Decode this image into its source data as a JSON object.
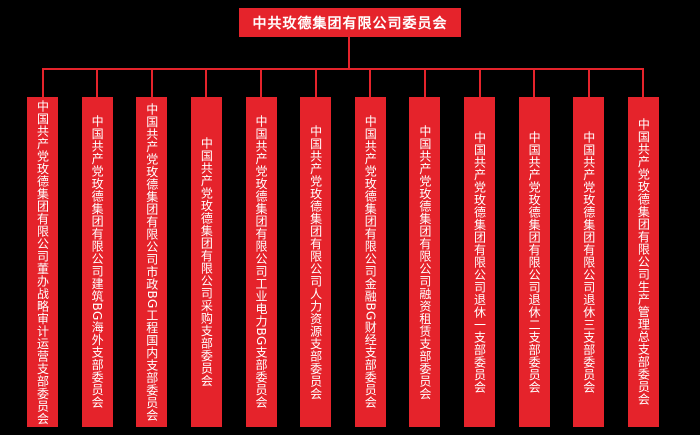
{
  "root": {
    "title": "中共玫德集团有限公司委员会"
  },
  "branches": [
    {
      "label": "中国共产党玫德集团有限公司董办战略审计运营支部委员会"
    },
    {
      "label": "中国共产党玫德集团有限公司建筑BG海外支部委员会"
    },
    {
      "label": "中国共产党玫德集团有限公司市政BG工程国内支部委员会"
    },
    {
      "label": "中国共产党玫德集团有限公司采购支部委员会"
    },
    {
      "label": "中国共产党玫德集团有限公司工业电力BG支部委员会"
    },
    {
      "label": "中国共产党玫德集团有限公司人力资源支部委员会"
    },
    {
      "label": "中国共产党玫德集团有限公司金融BG财经支部委员会"
    },
    {
      "label": "中国共产党玫德集团有限公司融资租赁支部委员会"
    },
    {
      "label": "中国共产党玫德集团有限公司退休一支部委员会"
    },
    {
      "label": "中国共产党玫德集团有限公司退休二支部委员会"
    },
    {
      "label": "中国共产党玫德集团有限公司退休三支部委员会"
    },
    {
      "label": "中国共产党玫德集团有限公司生产管理总支部委员会"
    }
  ],
  "colors": {
    "box_red": "#e5232b",
    "line_red": "#e5232b",
    "text_white": "#ffffff",
    "background": "#000000"
  }
}
